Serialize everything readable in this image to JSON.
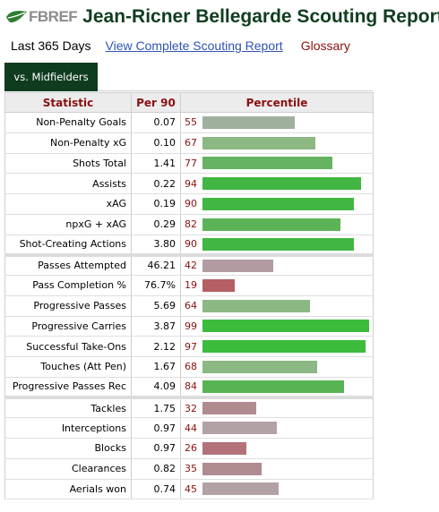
{
  "header": {
    "logo_text": "FBREF",
    "title": "Jean-Ricner Bellegarde Scouting Report"
  },
  "links": {
    "range": "Last 365 Days",
    "report": "View Complete Scouting Report",
    "glossary": "Glossary"
  },
  "tab": {
    "label": "vs. Midfielders"
  },
  "colors": {
    "high": "#3dbb3d",
    "mid_high": "#79b86e",
    "mid": "#a9b1a4",
    "low": "#b09aa0",
    "lowest": "#b25c61"
  },
  "table": {
    "headers": [
      "Statistic",
      "Per 90",
      "Percentile"
    ],
    "groups": [
      [
        {
          "stat": "Non-Penalty Goals",
          "per90": "0.07",
          "pct": 55,
          "color": "#9fb19d"
        },
        {
          "stat": "Non-Penalty xG",
          "per90": "0.10",
          "pct": 67,
          "color": "#8bb883"
        },
        {
          "stat": "Shots Total",
          "per90": "1.41",
          "pct": 77,
          "color": "#66b462"
        },
        {
          "stat": "Assists",
          "per90": "0.22",
          "pct": 94,
          "color": "#42b642"
        },
        {
          "stat": "xAG",
          "per90": "0.19",
          "pct": 90,
          "color": "#42b642"
        },
        {
          "stat": "npxG + xAG",
          "per90": "0.29",
          "pct": 82,
          "color": "#5cb357"
        },
        {
          "stat": "Shot-Creating Actions",
          "per90": "3.80",
          "pct": 90,
          "color": "#42b642"
        }
      ],
      [
        {
          "stat": "Passes Attempted",
          "per90": "46.21",
          "pct": 42,
          "color": "#b29ca1"
        },
        {
          "stat": "Pass Completion %",
          "per90": "76.7%",
          "pct": 19,
          "color": "#b45f63"
        },
        {
          "stat": "Progressive Passes",
          "per90": "5.69",
          "pct": 64,
          "color": "#8bb883"
        },
        {
          "stat": "Progressive Carries",
          "per90": "3.87",
          "pct": 99,
          "color": "#3cbb3c"
        },
        {
          "stat": "Successful Take-Ons",
          "per90": "2.12",
          "pct": 97,
          "color": "#3cbb3c"
        },
        {
          "stat": "Touches (Att Pen)",
          "per90": "1.67",
          "pct": 68,
          "color": "#8bb883"
        },
        {
          "stat": "Progressive Passes Rec",
          "per90": "4.09",
          "pct": 84,
          "color": "#57b452"
        }
      ],
      [
        {
          "stat": "Tackles",
          "per90": "1.75",
          "pct": 32,
          "color": "#b08b90"
        },
        {
          "stat": "Interceptions",
          "per90": "0.97",
          "pct": 44,
          "color": "#b2a1a5"
        },
        {
          "stat": "Blocks",
          "per90": "0.97",
          "pct": 26,
          "color": "#b37279"
        },
        {
          "stat": "Clearances",
          "per90": "0.82",
          "pct": 35,
          "color": "#b08b90"
        },
        {
          "stat": "Aerials won",
          "per90": "0.74",
          "pct": 45,
          "color": "#b2a1a5"
        }
      ]
    ]
  }
}
